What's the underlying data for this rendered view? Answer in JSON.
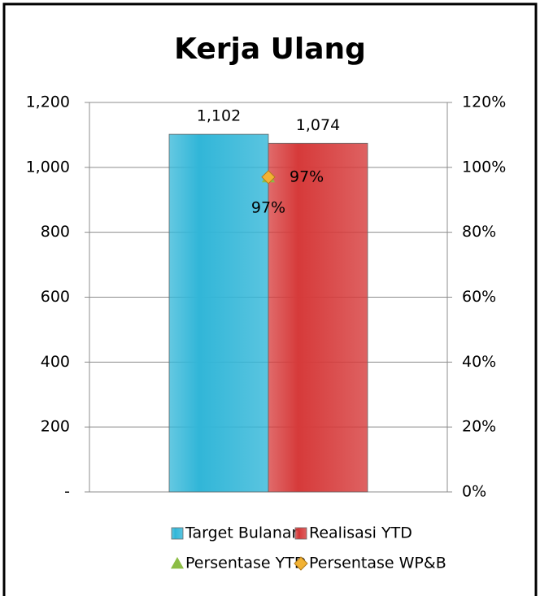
{
  "chart_data": {
    "type": "bar",
    "title": "Kerja Ulang",
    "categories": [
      null
    ],
    "series": [
      {
        "name": "Target Bulanan",
        "color": "#31b6d8",
        "values": [
          1102
        ],
        "value_labels": [
          "1,102"
        ]
      },
      {
        "name": "Realisasi YTD",
        "color": "#d63a3a",
        "values": [
          1074
        ],
        "value_labels": [
          "1,074"
        ]
      },
      {
        "name": "Persentase YTD",
        "color": "#8cbd45",
        "marker": "triangle",
        "axis": "y2",
        "values": [
          97
        ],
        "value_labels": [
          "97%"
        ]
      },
      {
        "name": "Persentase WP&B",
        "color": "#f2b233",
        "marker": "diamond",
        "axis": "y2",
        "values": [
          97
        ],
        "value_labels": [
          "97%"
        ]
      }
    ],
    "ylim": [
      0,
      1200
    ],
    "yticks": [
      {
        "value": 0,
        "label": "-"
      },
      200,
      400,
      600,
      800,
      {
        "value": 1000,
        "label": "1,000"
      },
      {
        "value": 1200,
        "label": "1,200"
      }
    ],
    "y2lim": [
      0,
      120
    ],
    "y2ticks": [
      {
        "value": 0,
        "label": "0%"
      },
      {
        "value": 20,
        "label": "20%"
      },
      {
        "value": 40,
        "label": "40%"
      },
      {
        "value": 60,
        "label": "60%"
      },
      {
        "value": 80,
        "label": "80%"
      },
      {
        "value": 100,
        "label": "100%"
      },
      {
        "value": 120,
        "label": "120%"
      }
    ],
    "grid": true
  }
}
